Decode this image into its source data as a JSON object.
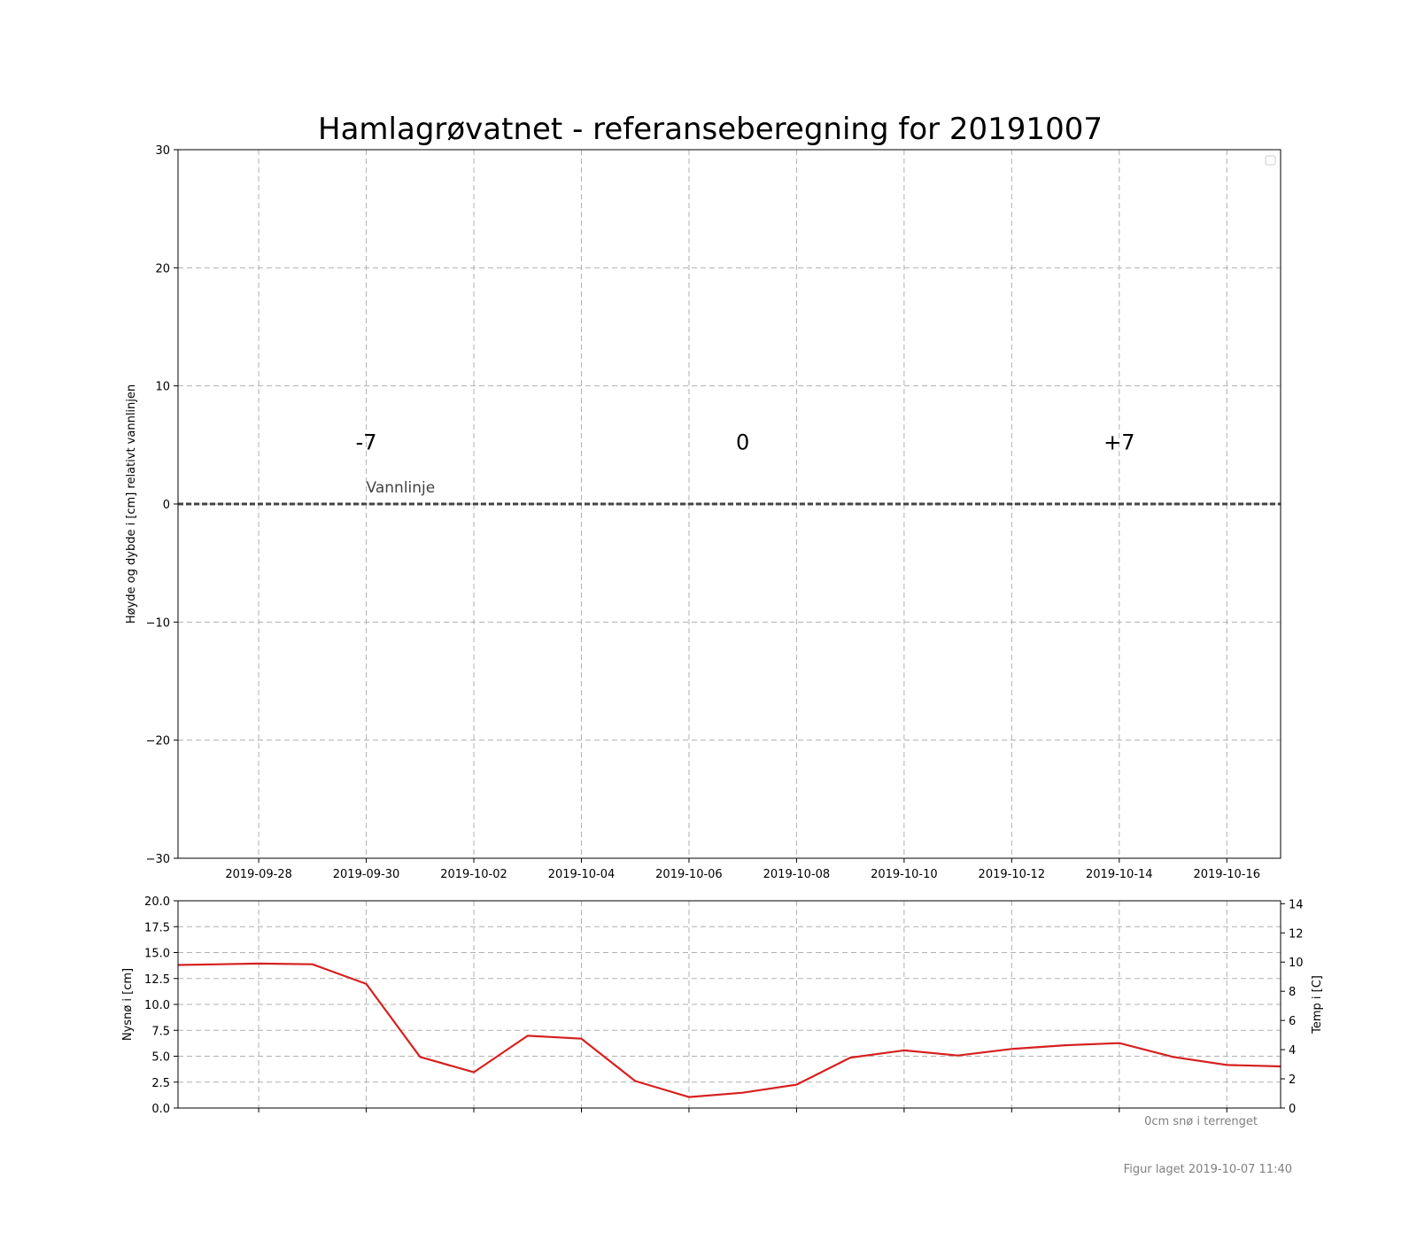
{
  "title": "Hamlagrøvatnet - referanseberegning for 20191007",
  "colors": {
    "grid": "#b0b0b0",
    "waterline": "#444444",
    "temperature_line": "#d62020",
    "footnote": "#808080"
  },
  "chart_data": [
    {
      "type": "line",
      "ylabel": "Høyde og dybde i [cm] relativt vannlinjen",
      "xlabel": "",
      "xlim": [
        "2019-09-26T12:00",
        "2019-10-17T00:00"
      ],
      "ylim": [
        -30,
        30
      ],
      "x_ticks": [
        "2019-09-28",
        "2019-09-30",
        "2019-10-02",
        "2019-10-04",
        "2019-10-06",
        "2019-10-08",
        "2019-10-10",
        "2019-10-12",
        "2019-10-14",
        "2019-10-16"
      ],
      "y_ticks": [
        "30",
        "20",
        "10",
        "0",
        "−10",
        "−20",
        "−30"
      ],
      "y_tick_values": [
        30,
        20,
        10,
        0,
        -10,
        -20,
        -30
      ],
      "grid": true,
      "legend": "top-right, empty",
      "series": [],
      "annotations": [
        {
          "text": "-7",
          "x": "2019-09-30",
          "y": 4.6
        },
        {
          "text": "0",
          "x": "2019-10-07",
          "y": 4.6
        },
        {
          "text": "+7",
          "x": "2019-10-14",
          "y": 4.6
        }
      ],
      "waterline": {
        "y": 0,
        "label": "Vannlinje"
      }
    },
    {
      "type": "line",
      "ylabel": "Nysnø i [cm]",
      "ylabel_right": "Temp i [C]",
      "xlim": [
        "2019-09-26T12:00",
        "2019-10-17T00:00"
      ],
      "ylim": [
        0,
        20
      ],
      "ylim_right": [
        0,
        14.2
      ],
      "y_ticks": [
        "0.0",
        "2.5",
        "5.0",
        "7.5",
        "10.0",
        "12.5",
        "15.0",
        "17.5",
        "20.0"
      ],
      "y_tick_values": [
        0,
        2.5,
        5,
        7.5,
        10,
        12.5,
        15,
        17.5,
        20
      ],
      "y_ticks_right": [
        "0",
        "2",
        "4",
        "6",
        "8",
        "10",
        "12",
        "14"
      ],
      "y_tick_values_right": [
        0,
        2,
        4,
        6,
        8,
        10,
        12,
        14
      ],
      "grid": true,
      "series": [
        {
          "axis": "right",
          "x": [
            "2019-09-26T12:00",
            "2019-09-28T00:00",
            "2019-09-29T00:00",
            "2019-09-30T00:00",
            "2019-10-01T00:00",
            "2019-10-02T00:00",
            "2019-10-03T00:00",
            "2019-10-04T00:00",
            "2019-10-05T00:00",
            "2019-10-06T00:00",
            "2019-10-07T00:00",
            "2019-10-08T00:00",
            "2019-10-09T00:00",
            "2019-10-10T00:00",
            "2019-10-11T00:00",
            "2019-10-12T00:00",
            "2019-10-13T00:00",
            "2019-10-14T00:00",
            "2019-10-15T00:00",
            "2019-10-16T00:00",
            "2019-10-17T00:00"
          ],
          "values": [
            9.8,
            9.9,
            9.85,
            8.5,
            3.5,
            2.45,
            4.95,
            4.75,
            1.85,
            0.75,
            1.05,
            1.6,
            3.45,
            3.95,
            3.6,
            4.05,
            4.3,
            4.45,
            3.5,
            2.95,
            2.85
          ]
        }
      ],
      "annotation": "0cm snø i terrenget"
    }
  ],
  "footer": "Figur laget 2019-10-07 11:40"
}
